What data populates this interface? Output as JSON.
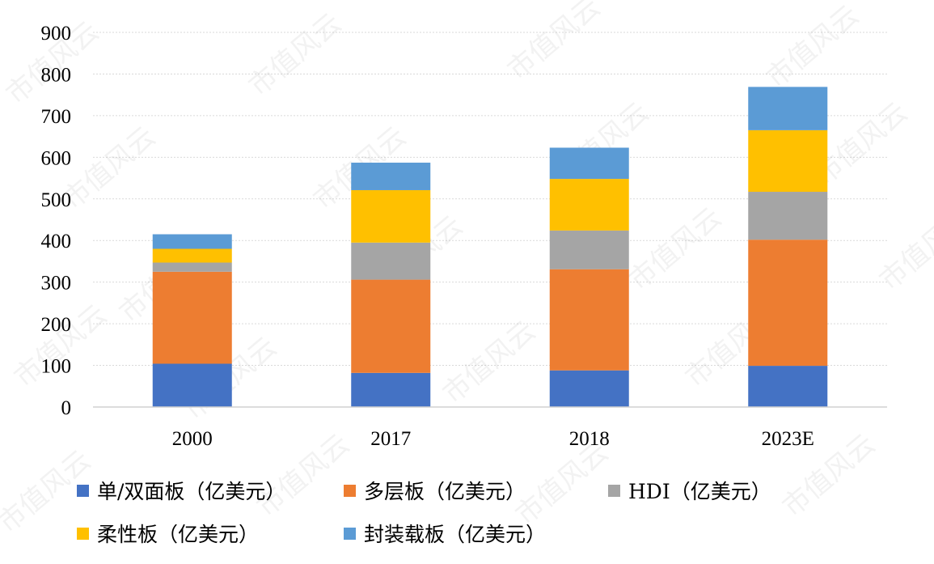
{
  "chart_data": {
    "type": "bar",
    "stacked": true,
    "categories": [
      "2000",
      "2017",
      "2018",
      "2023E"
    ],
    "series": [
      {
        "name": "单/双面板（亿美元）",
        "color": "#4472C4",
        "values": [
          104,
          82,
          88,
          99
        ]
      },
      {
        "name": "多层板（亿美元）",
        "color": "#ED7D31",
        "values": [
          221,
          224,
          243,
          303
        ]
      },
      {
        "name": "HDI（亿美元）",
        "color": "#A5A5A5",
        "values": [
          22,
          89,
          93,
          115
        ]
      },
      {
        "name": "柔性板（亿美元）",
        "color": "#FFC000",
        "values": [
          33,
          126,
          124,
          148
        ]
      },
      {
        "name": "封装载板（亿美元）",
        "color": "#5B9BD5",
        "values": [
          35,
          66,
          75,
          104
        ]
      }
    ],
    "ylim": [
      0,
      900
    ],
    "yticks": [
      0,
      100,
      200,
      300,
      400,
      500,
      600,
      700,
      800,
      900
    ],
    "grid": true,
    "legend_position": "bottom"
  },
  "watermark": "市值风云"
}
